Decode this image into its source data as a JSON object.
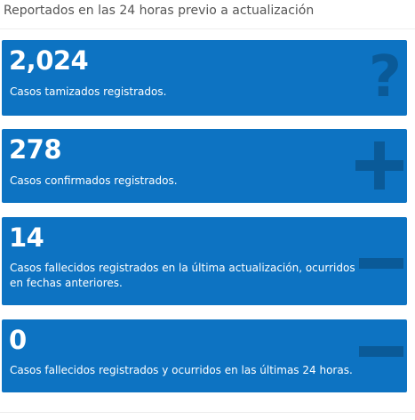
{
  "header": {
    "title": "Reportados en las 24 horas previo a actualización"
  },
  "cards": [
    {
      "value": "2,024",
      "label": "Casos tamizados registrados.",
      "icon": "question-icon"
    },
    {
      "value": "278",
      "label": "Casos confirmados registrados.",
      "icon": "plus-icon"
    },
    {
      "value": "14",
      "label": "Casos fallecidos registrados en la última actualización, ocurridos en fechas anteriores.",
      "icon": "minus-icon"
    },
    {
      "value": "0",
      "label": "Casos fallecidos registrados y ocurridos en las últimas 24 horas.",
      "icon": "minus-icon"
    }
  ],
  "colors": {
    "card_background": "#0d73c2",
    "icon_color": "#0a5a98",
    "header_text": "#555555"
  }
}
